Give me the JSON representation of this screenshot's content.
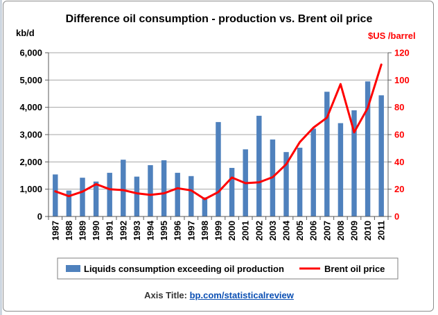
{
  "chart_data": {
    "type": "bar",
    "title": "Difference oil consumption - production vs. Brent oil price",
    "ylabel": "kb/d",
    "y2label": "$US /barrel",
    "ylim": [
      0,
      6000
    ],
    "y2lim": [
      0,
      120
    ],
    "yticks": [
      "0",
      "1,000",
      "2,000",
      "3,000",
      "4,000",
      "5,000",
      "6,000"
    ],
    "y2ticks": [
      "0",
      "20",
      "40",
      "60",
      "80",
      "100",
      "120"
    ],
    "categories": [
      "1987",
      "1988",
      "1989",
      "1990",
      "1991",
      "1992",
      "1993",
      "1994",
      "1995",
      "1996",
      "1997",
      "1998",
      "1999",
      "2000",
      "2001",
      "2002",
      "2003",
      "2004",
      "2005",
      "2006",
      "2007",
      "2008",
      "2009",
      "2010",
      "2011"
    ],
    "series": [
      {
        "name": "Liquids consumption exceeding oil production",
        "type": "bar",
        "axis": "left",
        "color": "#4f81bd",
        "values": [
          1540,
          950,
          1420,
          1280,
          1600,
          2080,
          1460,
          1880,
          2060,
          1600,
          1480,
          700,
          3460,
          1780,
          2460,
          3690,
          2820,
          2360,
          2520,
          3220,
          4570,
          3420,
          3890,
          4950,
          4440
        ]
      },
      {
        "name": "Brent oil price",
        "type": "line",
        "axis": "right",
        "color": "#ff0000",
        "values": [
          18.4,
          14.9,
          18.2,
          23.7,
          20.0,
          19.3,
          17.0,
          15.8,
          17.0,
          20.7,
          19.1,
          12.7,
          17.9,
          28.5,
          24.4,
          25.0,
          28.8,
          38.3,
          54.5,
          65.1,
          72.4,
          97.0,
          61.7,
          79.5,
          111.3
        ]
      }
    ],
    "grid": true,
    "legend_position": "bottom"
  },
  "footer": {
    "prefix": "Axis Title: ",
    "link": "bp.com/statisticalreview"
  }
}
